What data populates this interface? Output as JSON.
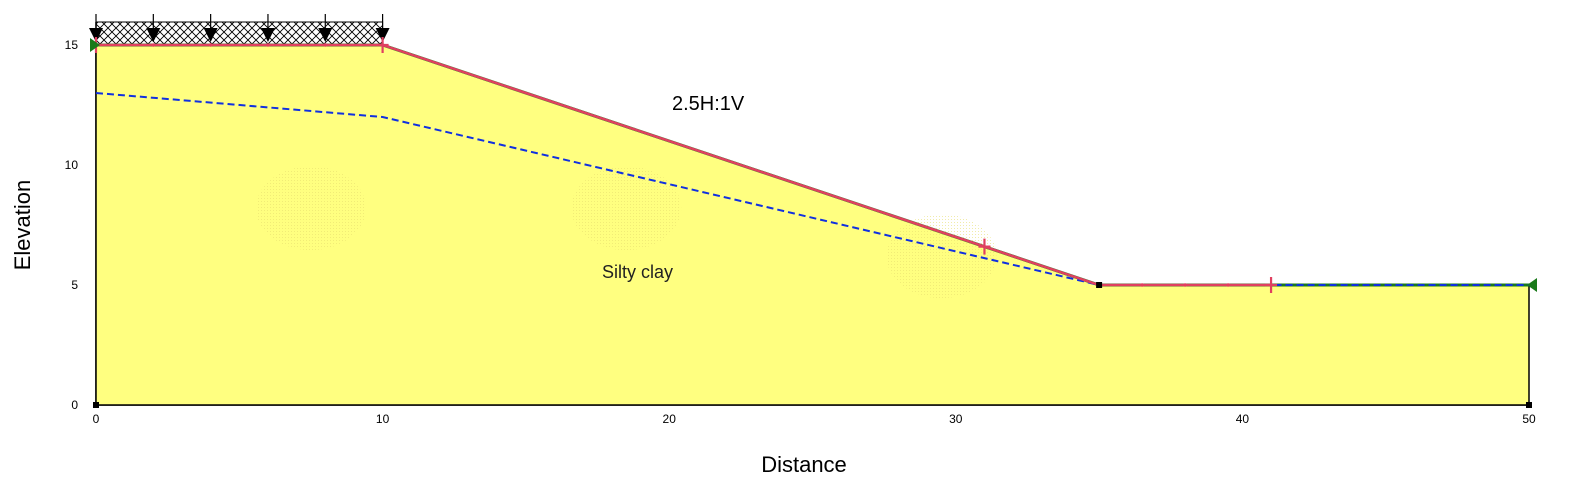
{
  "chart_data": {
    "type": "slope-stability-section",
    "xlabel": "Distance",
    "ylabel": "Elevation",
    "xlim": [
      0,
      50
    ],
    "ylim": [
      0,
      15
    ],
    "xticks": [
      0,
      10,
      20,
      30,
      40,
      50
    ],
    "yticks": [
      0,
      5,
      10,
      15
    ],
    "slope_label": "2.5H:1V",
    "material_label": "Silty clay",
    "colors": {
      "soil": "#ffff80",
      "ground_surface": "#1a7a1a",
      "slip_surface": "#e04060",
      "water_table": "#1030e0",
      "load_hatch": "#000000"
    },
    "geometry": [
      [
        0,
        15
      ],
      [
        10,
        15
      ],
      [
        35,
        5
      ],
      [
        50,
        5
      ],
      [
        50,
        0
      ],
      [
        0,
        0
      ]
    ],
    "ground_surface": [
      [
        0,
        15
      ],
      [
        10,
        15
      ],
      [
        35,
        5
      ],
      [
        50,
        5
      ]
    ],
    "water_table": [
      [
        0,
        13
      ],
      [
        10,
        12
      ],
      [
        35,
        5
      ],
      [
        50,
        5
      ]
    ],
    "slip_surface": [
      [
        0,
        15
      ],
      [
        10,
        15
      ],
      [
        31,
        6.6
      ],
      [
        35,
        5
      ],
      [
        41,
        5
      ]
    ],
    "surcharge_load": {
      "x_start": 0,
      "x_end": 10,
      "arrows_x": [
        0,
        2,
        4,
        6,
        8,
        10
      ]
    }
  }
}
